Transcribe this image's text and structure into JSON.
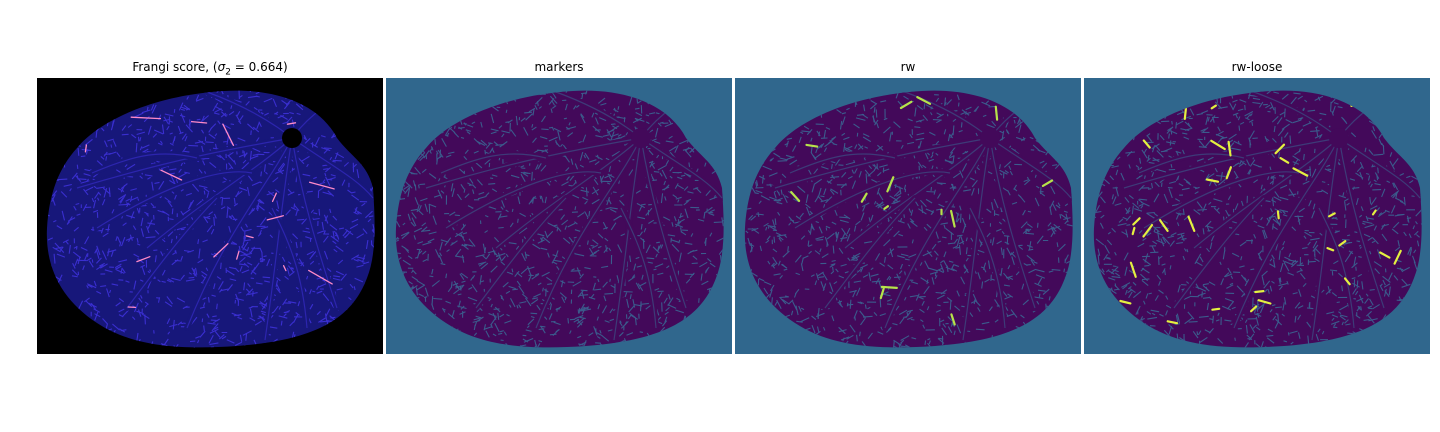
{
  "figure": {
    "panels": [
      {
        "title_prefix": "Frangi score, (",
        "title_sigma": "σ",
        "title_sub": "2",
        "title_suffix": " = 0.664)",
        "image": "frangi-vesselness-retina",
        "colors": {
          "background": "#000000",
          "vessel": "#17177a",
          "texture": "#3a2fd0",
          "highlight": "#ff8ac8"
        }
      },
      {
        "title": "markers",
        "image": "markers-label-map",
        "colors": {
          "background": "#30678d",
          "vessel": "#43095a",
          "texture": "#3b5b8c"
        }
      },
      {
        "title": "rw",
        "image": "random-walker-segmentation",
        "colors": {
          "background": "#30678d",
          "vessel": "#43095a",
          "texture": "#3b5b8c",
          "highlight": "#b7e34a"
        }
      },
      {
        "title": "rw-loose",
        "image": "random-walker-loose-segmentation",
        "colors": {
          "background": "#30678d",
          "vessel": "#43095a",
          "texture": "#3b5b8c",
          "highlight": "#e4f040"
        }
      }
    ]
  }
}
